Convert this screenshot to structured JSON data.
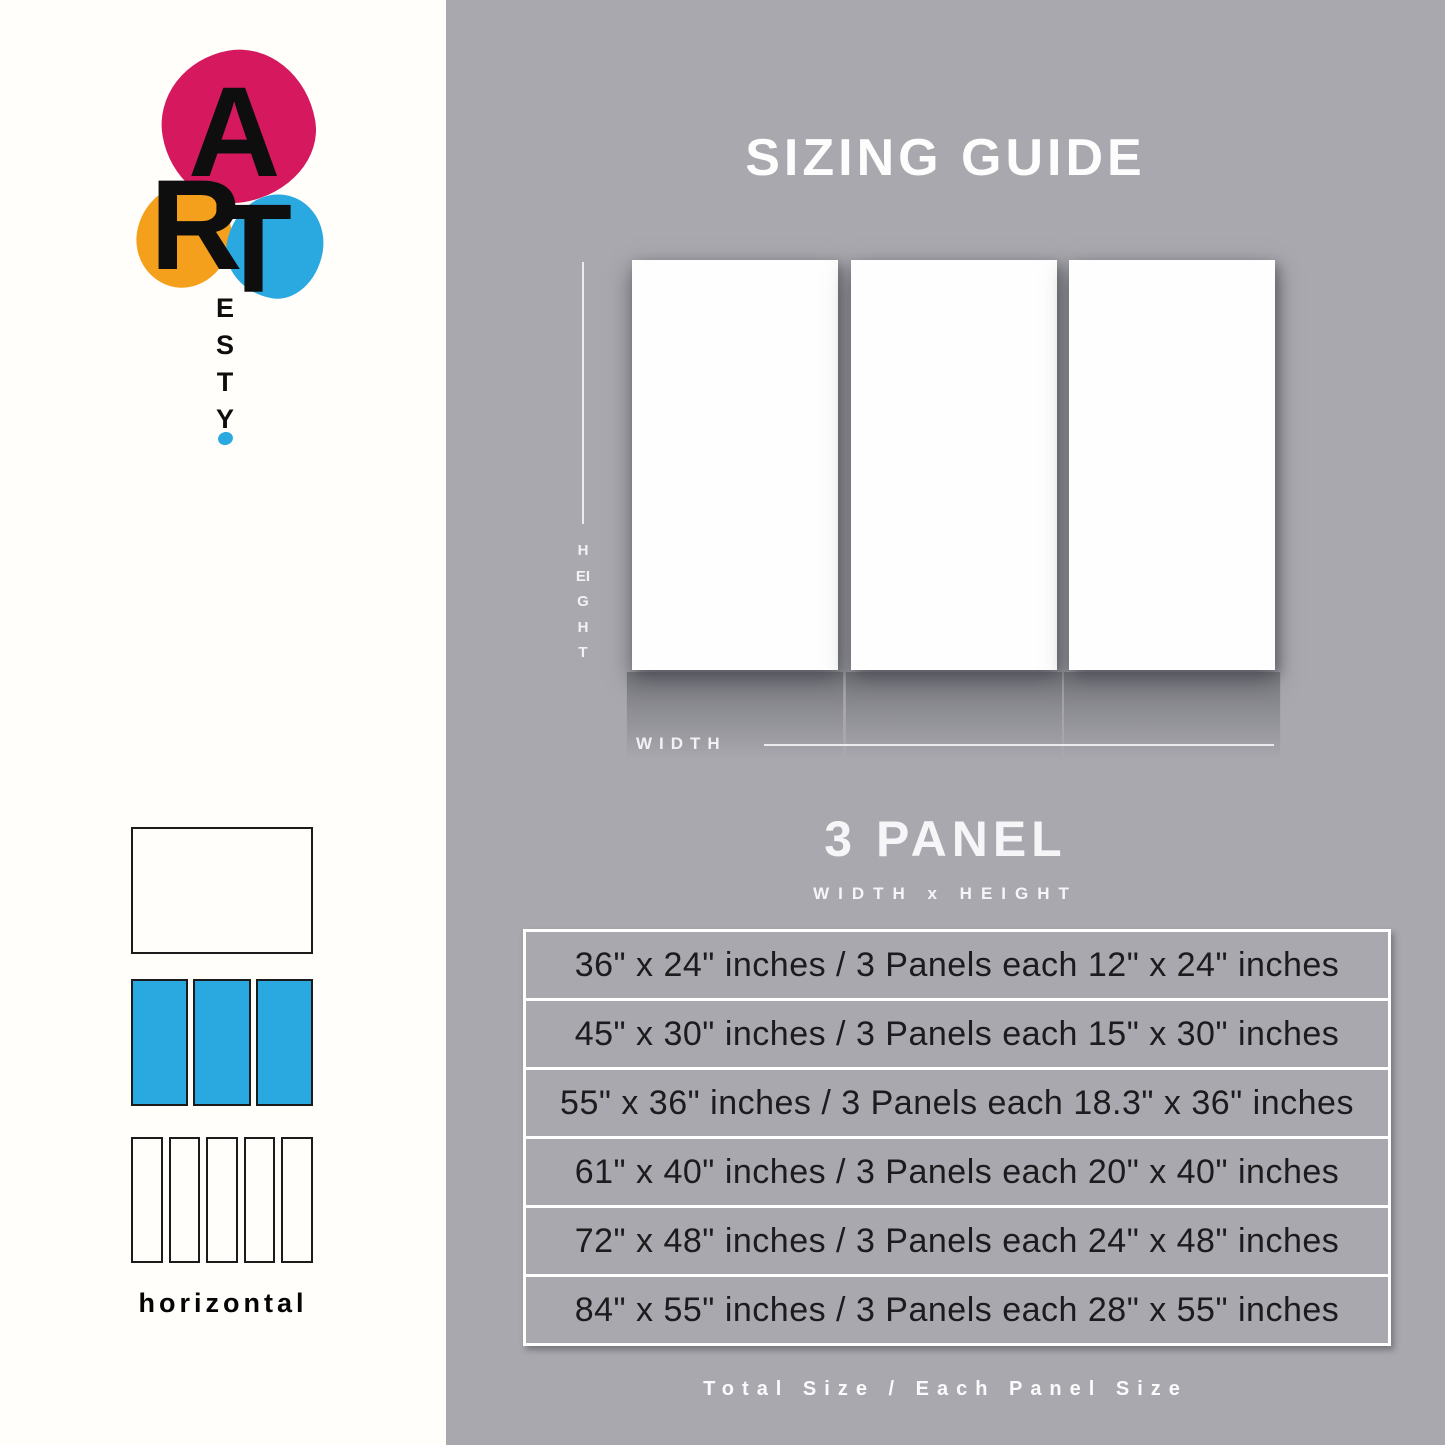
{
  "brand": {
    "name": "ARTesty",
    "art_letters": [
      "A",
      "R",
      "T"
    ],
    "esty_letters": "ESTY",
    "colors": {
      "pink": "#D6195E",
      "orange": "#F5A01D",
      "blue": "#2AA9E0"
    }
  },
  "header": {
    "title": "SIZING GUIDE"
  },
  "mockup": {
    "height_label": "HEIGHT",
    "width_label": "WIDTH",
    "panel_count": 3
  },
  "panel_section": {
    "title": "3 PANEL",
    "subtitle": "WIDTH x HEIGHT"
  },
  "sizing_table": {
    "rows": [
      "36\" x 24\" inches / 3 Panels each 12\" x 24\" inches",
      "45\" x 30\" inches / 3 Panels each 15\" x 30\" inches",
      "55\" x 36\" inches / 3 Panels each 18.3\" x 36\" inches",
      "61\" x 40\" inches / 3 Panels each 20\" x 40\" inches",
      "72\" x 48\" inches / 3 Panels each 24\" x 48\" inches",
      "84\" x 55\" inches / 3 Panels each 28\" x 55\" inches"
    ]
  },
  "footer": {
    "caption": "Total Size / Each Panel Size"
  },
  "sidebar": {
    "orientation_label": "horizontal",
    "layouts": [
      {
        "name": "1-panel",
        "panels": 1,
        "selected": false
      },
      {
        "name": "3-panel",
        "panels": 3,
        "selected": true,
        "highlight_color": "#2AA9E0"
      },
      {
        "name": "5-panel",
        "panels": 5,
        "selected": false
      }
    ]
  }
}
